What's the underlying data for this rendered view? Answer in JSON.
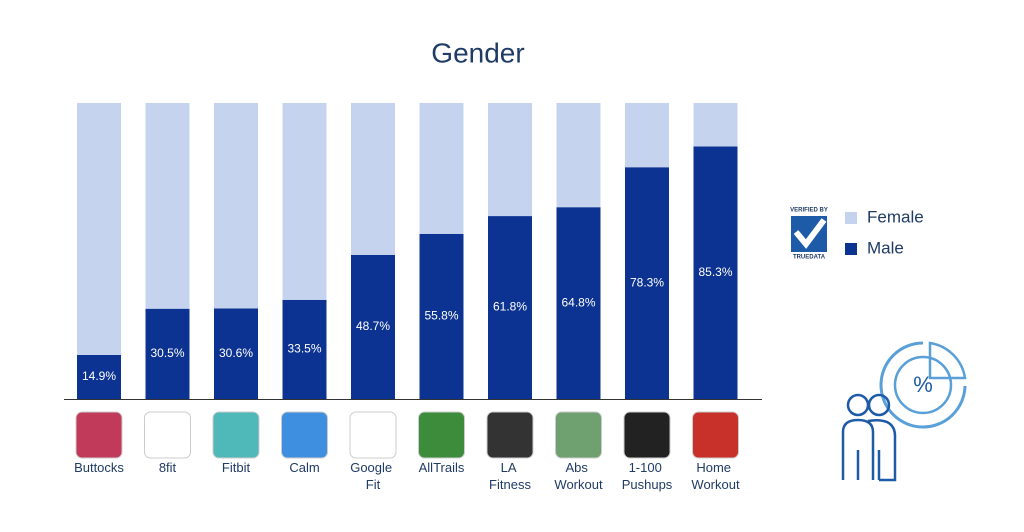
{
  "chart_data": {
    "type": "stacked_bar",
    "title": "Gender",
    "categories": [
      "Buttocks",
      "8fit",
      "Fitbit",
      "Calm",
      "Google Fit",
      "AllTrails",
      "LA Fitness",
      "Abs Workout",
      "1-100 Pushups",
      "Home Workout"
    ],
    "series": [
      {
        "name": "Male",
        "color": "#0c3391",
        "values": [
          14.9,
          30.5,
          30.6,
          33.5,
          48.7,
          55.8,
          61.8,
          64.8,
          78.3,
          85.3
        ],
        "value_labels": [
          "14.9%",
          "30.5%",
          "30.6%",
          "33.5%",
          "48.7%",
          "55.8%",
          "61.8%",
          "64.8%",
          "78.3%",
          "85.3%"
        ]
      },
      {
        "name": "Female",
        "color": "#c5d3ef",
        "values": [
          85.1,
          69.5,
          69.4,
          66.5,
          51.3,
          44.2,
          38.2,
          35.2,
          21.7,
          14.7
        ]
      }
    ],
    "ylim": [
      0,
      100
    ],
    "legend": "right",
    "badge": {
      "top": "VERIFIED BY",
      "bottom": "TRUEDATA"
    },
    "icon_symbol": "%"
  }
}
